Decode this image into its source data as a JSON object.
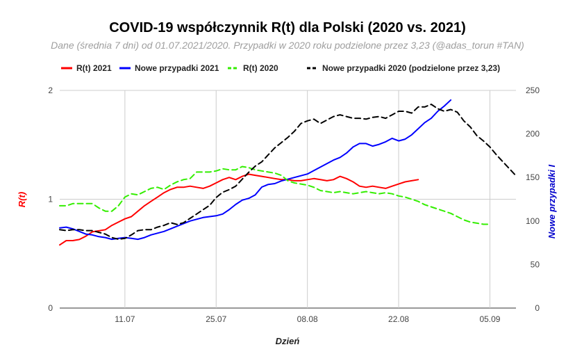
{
  "chart_data": {
    "type": "line",
    "title": "COVID-19 współczynnik R(t) dla Polski (2020 vs. 2021)",
    "subtitle": "Dane (średnia 7 dni) od 01.07.2021/2020. Przypadki w 2020 roku podzielone przez 3,23 (@adas_torun #TAN)",
    "xlabel": "Dzień",
    "ylabel_left": "R(t)",
    "ylabel_right": "Nowe przypadki I",
    "x_ticks": [
      {
        "day": 10,
        "label": "11.07"
      },
      {
        "day": 24,
        "label": "25.07"
      },
      {
        "day": 38,
        "label": "08.08"
      },
      {
        "day": 52,
        "label": "22.08"
      },
      {
        "day": 66,
        "label": "05.09"
      }
    ],
    "xlim": [
      0,
      70
    ],
    "ylim_left": [
      0,
      2
    ],
    "yticks_left": [
      "0",
      "1",
      "2"
    ],
    "ylim_right": [
      0,
      250
    ],
    "yticks_right": [
      "0",
      "50",
      "100",
      "150",
      "200",
      "250"
    ],
    "grid": true,
    "legend_position": "top",
    "series": [
      {
        "name": "R(t) 2021",
        "axis": "left",
        "color": "#ff0000",
        "dash": false,
        "points": [
          [
            0,
            0.58
          ],
          [
            1,
            0.62
          ],
          [
            2,
            0.62
          ],
          [
            3,
            0.63
          ],
          [
            4,
            0.66
          ],
          [
            5,
            0.7
          ],
          [
            6,
            0.71
          ],
          [
            7,
            0.72
          ],
          [
            8,
            0.76
          ],
          [
            9,
            0.79
          ],
          [
            10,
            0.82
          ],
          [
            11,
            0.84
          ],
          [
            12,
            0.89
          ],
          [
            13,
            0.94
          ],
          [
            14,
            0.98
          ],
          [
            15,
            1.02
          ],
          [
            16,
            1.06
          ],
          [
            17,
            1.09
          ],
          [
            18,
            1.11
          ],
          [
            19,
            1.11
          ],
          [
            20,
            1.12
          ],
          [
            21,
            1.11
          ],
          [
            22,
            1.1
          ],
          [
            23,
            1.12
          ],
          [
            24,
            1.15
          ],
          [
            25,
            1.18
          ],
          [
            26,
            1.2
          ],
          [
            27,
            1.18
          ],
          [
            28,
            1.21
          ],
          [
            29,
            1.23
          ],
          [
            30,
            1.22
          ],
          [
            31,
            1.21
          ],
          [
            32,
            1.2
          ],
          [
            33,
            1.19
          ],
          [
            34,
            1.18
          ],
          [
            35,
            1.18
          ],
          [
            36,
            1.17
          ],
          [
            37,
            1.17
          ],
          [
            38,
            1.18
          ],
          [
            39,
            1.19
          ],
          [
            40,
            1.18
          ],
          [
            41,
            1.17
          ],
          [
            42,
            1.18
          ],
          [
            43,
            1.21
          ],
          [
            44,
            1.19
          ],
          [
            45,
            1.16
          ],
          [
            46,
            1.12
          ],
          [
            47,
            1.11
          ],
          [
            48,
            1.12
          ],
          [
            49,
            1.11
          ],
          [
            50,
            1.1
          ],
          [
            51,
            1.12
          ],
          [
            52,
            1.14
          ],
          [
            53,
            1.16
          ],
          [
            54,
            1.17
          ],
          [
            55,
            1.18
          ]
        ]
      },
      {
        "name": "Nowe przypadki 2021",
        "axis": "right",
        "color": "#0000ff",
        "dash": false,
        "points": [
          [
            0,
            92
          ],
          [
            1,
            93
          ],
          [
            2,
            91
          ],
          [
            3,
            88
          ],
          [
            4,
            85
          ],
          [
            5,
            84
          ],
          [
            6,
            82
          ],
          [
            7,
            81
          ],
          [
            8,
            79
          ],
          [
            9,
            80
          ],
          [
            10,
            81
          ],
          [
            11,
            80
          ],
          [
            12,
            79
          ],
          [
            13,
            81
          ],
          [
            14,
            84
          ],
          [
            15,
            86
          ],
          [
            16,
            88
          ],
          [
            17,
            91
          ],
          [
            18,
            94
          ],
          [
            19,
            97
          ],
          [
            20,
            100
          ],
          [
            21,
            102
          ],
          [
            22,
            104
          ],
          [
            23,
            105
          ],
          [
            24,
            106
          ],
          [
            25,
            108
          ],
          [
            26,
            113
          ],
          [
            27,
            119
          ],
          [
            28,
            124
          ],
          [
            29,
            126
          ],
          [
            30,
            130
          ],
          [
            31,
            139
          ],
          [
            32,
            142
          ],
          [
            33,
            143
          ],
          [
            34,
            146
          ],
          [
            35,
            148
          ],
          [
            36,
            150
          ],
          [
            37,
            152
          ],
          [
            38,
            154
          ],
          [
            39,
            158
          ],
          [
            40,
            162
          ],
          [
            41,
            166
          ],
          [
            42,
            170
          ],
          [
            43,
            173
          ],
          [
            44,
            178
          ],
          [
            45,
            185
          ],
          [
            46,
            189
          ],
          [
            47,
            189
          ],
          [
            48,
            186
          ],
          [
            49,
            188
          ],
          [
            50,
            191
          ],
          [
            51,
            195
          ],
          [
            52,
            192
          ],
          [
            53,
            194
          ],
          [
            54,
            199
          ],
          [
            55,
            206
          ],
          [
            56,
            213
          ],
          [
            57,
            218
          ],
          [
            58,
            226
          ],
          [
            59,
            232
          ],
          [
            60,
            239
          ]
        ]
      },
      {
        "name": "R(t) 2020",
        "axis": "left",
        "color": "#33ee00",
        "dash": true,
        "points": [
          [
            0,
            0.94
          ],
          [
            1,
            0.94
          ],
          [
            2,
            0.96
          ],
          [
            3,
            0.96
          ],
          [
            4,
            0.96
          ],
          [
            5,
            0.96
          ],
          [
            6,
            0.92
          ],
          [
            7,
            0.89
          ],
          [
            8,
            0.89
          ],
          [
            9,
            0.94
          ],
          [
            10,
            1.02
          ],
          [
            11,
            1.05
          ],
          [
            12,
            1.04
          ],
          [
            13,
            1.07
          ],
          [
            14,
            1.1
          ],
          [
            15,
            1.11
          ],
          [
            16,
            1.09
          ],
          [
            17,
            1.13
          ],
          [
            18,
            1.16
          ],
          [
            19,
            1.18
          ],
          [
            20,
            1.19
          ],
          [
            21,
            1.25
          ],
          [
            22,
            1.25
          ],
          [
            23,
            1.25
          ],
          [
            24,
            1.26
          ],
          [
            25,
            1.28
          ],
          [
            26,
            1.27
          ],
          [
            27,
            1.27
          ],
          [
            28,
            1.3
          ],
          [
            29,
            1.29
          ],
          [
            30,
            1.27
          ],
          [
            31,
            1.26
          ],
          [
            32,
            1.25
          ],
          [
            33,
            1.24
          ],
          [
            34,
            1.22
          ],
          [
            35,
            1.17
          ],
          [
            36,
            1.15
          ],
          [
            37,
            1.14
          ],
          [
            38,
            1.13
          ],
          [
            39,
            1.11
          ],
          [
            40,
            1.08
          ],
          [
            41,
            1.07
          ],
          [
            42,
            1.06
          ],
          [
            43,
            1.07
          ],
          [
            44,
            1.06
          ],
          [
            45,
            1.05
          ],
          [
            46,
            1.06
          ],
          [
            47,
            1.07
          ],
          [
            48,
            1.06
          ],
          [
            49,
            1.05
          ],
          [
            50,
            1.06
          ],
          [
            51,
            1.05
          ],
          [
            52,
            1.03
          ],
          [
            53,
            1.02
          ],
          [
            54,
            1.0
          ],
          [
            55,
            0.98
          ],
          [
            56,
            0.95
          ],
          [
            57,
            0.93
          ],
          [
            58,
            0.91
          ],
          [
            59,
            0.89
          ],
          [
            60,
            0.87
          ],
          [
            61,
            0.84
          ],
          [
            62,
            0.81
          ],
          [
            63,
            0.79
          ],
          [
            64,
            0.78
          ],
          [
            65,
            0.77
          ],
          [
            66,
            0.77
          ]
        ]
      },
      {
        "name": "Nowe przypadki 2020 (podzielone przez 3,23)",
        "axis": "right",
        "color": "#000000",
        "dash": true,
        "points": [
          [
            0,
            90
          ],
          [
            1,
            89
          ],
          [
            2,
            90
          ],
          [
            3,
            90
          ],
          [
            4,
            89
          ],
          [
            5,
            89
          ],
          [
            6,
            87
          ],
          [
            7,
            85
          ],
          [
            8,
            81
          ],
          [
            9,
            79
          ],
          [
            10,
            80
          ],
          [
            11,
            84
          ],
          [
            12,
            89
          ],
          [
            13,
            90
          ],
          [
            14,
            90
          ],
          [
            15,
            93
          ],
          [
            16,
            95
          ],
          [
            17,
            98
          ],
          [
            18,
            96
          ],
          [
            19,
            98
          ],
          [
            20,
            103
          ],
          [
            21,
            108
          ],
          [
            22,
            113
          ],
          [
            23,
            118
          ],
          [
            24,
            127
          ],
          [
            25,
            133
          ],
          [
            26,
            136
          ],
          [
            27,
            140
          ],
          [
            28,
            148
          ],
          [
            29,
            156
          ],
          [
            30,
            163
          ],
          [
            31,
            168
          ],
          [
            32,
            176
          ],
          [
            33,
            184
          ],
          [
            34,
            190
          ],
          [
            35,
            196
          ],
          [
            36,
            203
          ],
          [
            37,
            212
          ],
          [
            38,
            215
          ],
          [
            39,
            217
          ],
          [
            40,
            212
          ],
          [
            41,
            216
          ],
          [
            42,
            220
          ],
          [
            43,
            222
          ],
          [
            44,
            220
          ],
          [
            45,
            218
          ],
          [
            46,
            218
          ],
          [
            47,
            217
          ],
          [
            48,
            219
          ],
          [
            49,
            220
          ],
          [
            50,
            218
          ],
          [
            51,
            222
          ],
          [
            52,
            226
          ],
          [
            53,
            226
          ],
          [
            54,
            224
          ],
          [
            55,
            231
          ],
          [
            56,
            231
          ],
          [
            57,
            234
          ],
          [
            58,
            229
          ],
          [
            59,
            226
          ],
          [
            60,
            228
          ],
          [
            61,
            225
          ],
          [
            62,
            215
          ],
          [
            63,
            208
          ],
          [
            64,
            198
          ],
          [
            65,
            192
          ],
          [
            66,
            185
          ],
          [
            67,
            176
          ],
          [
            68,
            168
          ],
          [
            69,
            160
          ],
          [
            70,
            152
          ]
        ]
      }
    ]
  }
}
